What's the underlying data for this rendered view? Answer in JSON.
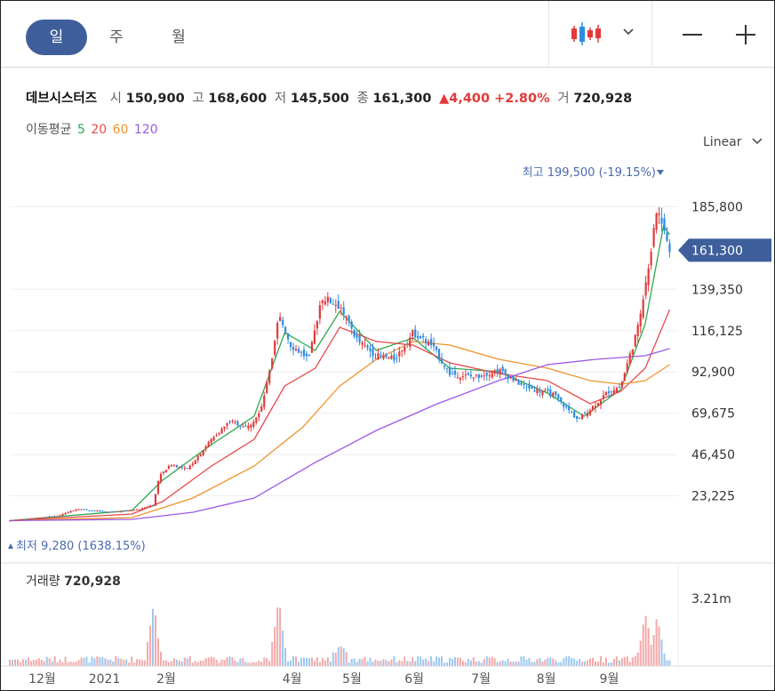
{
  "tabs": [
    {
      "label": "일",
      "active": true
    },
    {
      "label": "주",
      "active": false
    },
    {
      "label": "월",
      "active": false
    }
  ],
  "toolbar": {
    "candle_icon": "candlestick-icon",
    "dropdown_icon": "chevron-down-icon",
    "zoom_out_icon": "minus-icon",
    "zoom_in_icon": "plus-icon"
  },
  "quote": {
    "name": "데브시스터즈",
    "open_label": "시",
    "open": "150,900",
    "high_label": "고",
    "high": "168,600",
    "low_label": "저",
    "low": "145,500",
    "close_label": "종",
    "close": "161,300",
    "change": "▲4,400 +2.80%",
    "volume_label": "거",
    "volume": "720,928"
  },
  "ma_legend": {
    "label": "이동평균",
    "periods": [
      "5",
      "20",
      "60",
      "120"
    ],
    "colors": [
      "#2fa84f",
      "#e84a4a",
      "#f0932b",
      "#9b59e8"
    ]
  },
  "scale": {
    "label": "Linear"
  },
  "colors": {
    "up": "#e23a3a",
    "down": "#2f8be0",
    "accent": "#3e5f9b"
  },
  "chart_data": {
    "type": "candlestick",
    "y_ticks": [
      "185,800",
      "139,350",
      "116,125",
      "92,900",
      "69,675",
      "46,450",
      "23,225"
    ],
    "ylim": [
      0,
      209000
    ],
    "current_price_label": "161,300",
    "max_annotation": {
      "label": "최고",
      "value": "199,500 (-19.15%)"
    },
    "min_annotation": {
      "label": "최저",
      "value": "9,280 (1638.15%)"
    },
    "x_labels": [
      "12월",
      "2021",
      "2월",
      "4월",
      "5월",
      "6월",
      "7월",
      "8월",
      "9월"
    ],
    "x_label_positions": [
      0.053,
      0.155,
      0.256,
      0.462,
      0.56,
      0.662,
      0.771,
      0.878,
      0.981
    ],
    "price_path": [
      [
        0,
        9280
      ],
      [
        0.08,
        12000
      ],
      [
        0.11,
        16000
      ],
      [
        0.16,
        14000
      ],
      [
        0.21,
        15500
      ],
      [
        0.235,
        18000
      ],
      [
        0.245,
        35000
      ],
      [
        0.265,
        41000
      ],
      [
        0.29,
        38000
      ],
      [
        0.33,
        55000
      ],
      [
        0.36,
        65000
      ],
      [
        0.39,
        62000
      ],
      [
        0.41,
        70000
      ],
      [
        0.43,
        100000
      ],
      [
        0.44,
        125000
      ],
      [
        0.46,
        108000
      ],
      [
        0.49,
        100000
      ],
      [
        0.51,
        135000
      ],
      [
        0.54,
        130000
      ],
      [
        0.57,
        110000
      ],
      [
        0.6,
        102000
      ],
      [
        0.63,
        100000
      ],
      [
        0.66,
        115000
      ],
      [
        0.69,
        108000
      ],
      [
        0.72,
        92000
      ],
      [
        0.76,
        90000
      ],
      [
        0.8,
        94000
      ],
      [
        0.84,
        85000
      ],
      [
        0.89,
        80000
      ],
      [
        0.93,
        66000
      ],
      [
        0.95,
        72000
      ],
      [
        0.98,
        82000
      ],
      [
        1.0,
        85000
      ],
      [
        1.03,
        120000
      ],
      [
        1.06,
        185000
      ],
      [
        1.08,
        161300
      ]
    ],
    "ma_series": [
      {
        "period": "5",
        "color": "#2fa84f",
        "points": [
          [
            0,
            9280
          ],
          [
            0.2,
            15000
          ],
          [
            0.25,
            32000
          ],
          [
            0.33,
            52000
          ],
          [
            0.4,
            68000
          ],
          [
            0.45,
            115000
          ],
          [
            0.5,
            105000
          ],
          [
            0.54,
            127000
          ],
          [
            0.6,
            105000
          ],
          [
            0.66,
            112000
          ],
          [
            0.72,
            95000
          ],
          [
            0.8,
            93000
          ],
          [
            0.88,
            81000
          ],
          [
            0.94,
            68000
          ],
          [
            1.0,
            83000
          ],
          [
            1.04,
            120000
          ],
          [
            1.07,
            175000
          ],
          [
            1.08,
            170000
          ]
        ]
      },
      {
        "period": "20",
        "color": "#e84a4a",
        "points": [
          [
            0,
            9280
          ],
          [
            0.2,
            13000
          ],
          [
            0.25,
            20000
          ],
          [
            0.33,
            40000
          ],
          [
            0.4,
            55000
          ],
          [
            0.45,
            85000
          ],
          [
            0.5,
            95000
          ],
          [
            0.54,
            118000
          ],
          [
            0.6,
            110000
          ],
          [
            0.66,
            108000
          ],
          [
            0.72,
            98000
          ],
          [
            0.8,
            92000
          ],
          [
            0.88,
            88000
          ],
          [
            0.95,
            75000
          ],
          [
            1.0,
            82000
          ],
          [
            1.04,
            95000
          ],
          [
            1.08,
            128000
          ]
        ]
      },
      {
        "period": "60",
        "color": "#f0932b",
        "points": [
          [
            0,
            9280
          ],
          [
            0.2,
            11000
          ],
          [
            0.3,
            22000
          ],
          [
            0.4,
            40000
          ],
          [
            0.48,
            62000
          ],
          [
            0.54,
            85000
          ],
          [
            0.6,
            100000
          ],
          [
            0.66,
            110000
          ],
          [
            0.72,
            108000
          ],
          [
            0.8,
            100000
          ],
          [
            0.88,
            95000
          ],
          [
            0.95,
            88000
          ],
          [
            1.0,
            86000
          ],
          [
            1.04,
            88000
          ],
          [
            1.08,
            97000
          ]
        ]
      },
      {
        "period": "120",
        "color": "#9b59e8",
        "points": [
          [
            0,
            9280
          ],
          [
            0.2,
            10000
          ],
          [
            0.3,
            14000
          ],
          [
            0.4,
            22000
          ],
          [
            0.5,
            42000
          ],
          [
            0.6,
            60000
          ],
          [
            0.7,
            75000
          ],
          [
            0.8,
            88000
          ],
          [
            0.88,
            97000
          ],
          [
            0.96,
            100000
          ],
          [
            1.04,
            102000
          ],
          [
            1.08,
            106000
          ]
        ]
      }
    ],
    "volume_label": "거래량",
    "volume_value": "720,928",
    "volume_tick": "3.21m",
    "volume_spikes": [
      [
        0.235,
        0.68
      ],
      [
        0.44,
        0.7
      ],
      [
        0.54,
        0.25
      ],
      [
        1.04,
        0.6
      ],
      [
        1.06,
        0.55
      ]
    ]
  }
}
